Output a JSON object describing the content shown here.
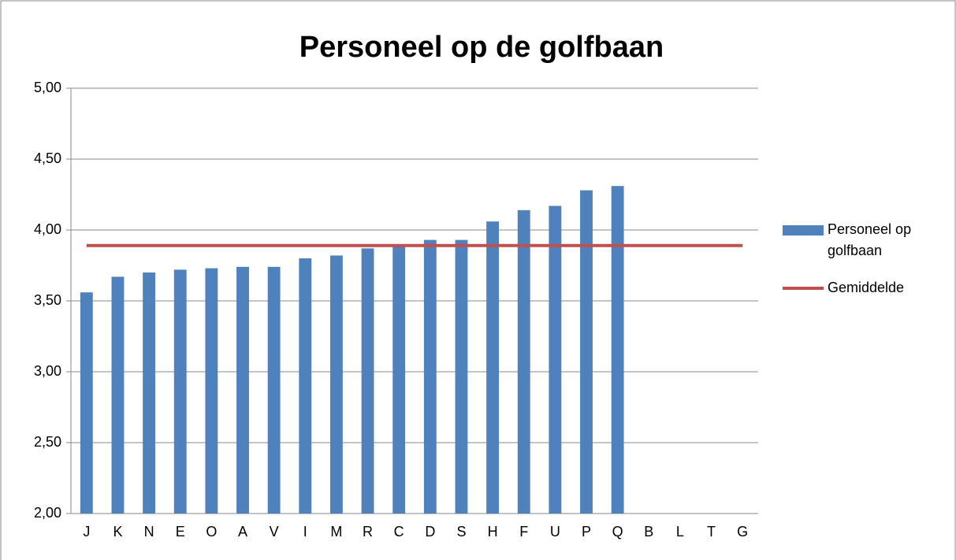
{
  "chart_data": {
    "type": "bar",
    "title": "Personeel op de golfbaan",
    "categories": [
      "J",
      "K",
      "N",
      "E",
      "O",
      "A",
      "V",
      "I",
      "M",
      "R",
      "C",
      "D",
      "S",
      "H",
      "F",
      "U",
      "P",
      "Q",
      "B",
      "L",
      "T",
      "G"
    ],
    "series": [
      {
        "name": "Personeel op golfbaan",
        "type": "bar",
        "color": "#4f81bd",
        "values": [
          3.56,
          3.67,
          3.7,
          3.72,
          3.73,
          3.74,
          3.74,
          3.8,
          3.82,
          3.87,
          3.89,
          3.93,
          3.93,
          4.06,
          4.14,
          4.17,
          4.28,
          4.31,
          null,
          null,
          null,
          null
        ]
      },
      {
        "name": "Gemiddelde",
        "type": "line",
        "color": "#c0504d",
        "values": [
          3.89,
          3.89,
          3.89,
          3.89,
          3.89,
          3.89,
          3.89,
          3.89,
          3.89,
          3.89,
          3.89,
          3.89,
          3.89,
          3.89,
          3.89,
          3.89,
          3.89,
          3.89,
          3.89,
          3.89,
          3.89,
          3.89
        ]
      }
    ],
    "ylim": [
      2,
      5
    ],
    "yticks": [
      {
        "value": 2,
        "label": "2,00"
      },
      {
        "value": 2.5,
        "label": "2,50"
      },
      {
        "value": 3,
        "label": "3,00"
      },
      {
        "value": 3.5,
        "label": "3,50"
      },
      {
        "value": 4,
        "label": "4,00"
      },
      {
        "value": 4.5,
        "label": "4,50"
      },
      {
        "value": 5,
        "label": "5,00"
      }
    ],
    "grid": true,
    "legend": "right"
  }
}
